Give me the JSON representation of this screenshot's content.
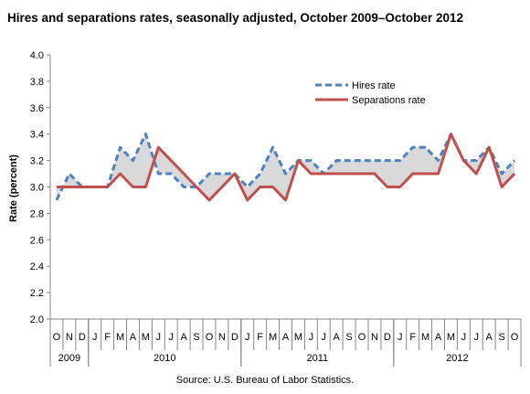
{
  "title": "Hires and separations rates, seasonally adjusted, October 2009–October 2012",
  "source": "Source: U.S. Bureau of Labor Statistics.",
  "chart_data": {
    "type": "line",
    "title": "Hires and separations rates, seasonally adjusted, October 2009–October 2012",
    "ylabel": "Rate (percent)",
    "xlabel": "",
    "ylim": [
      2.0,
      4.0
    ],
    "yticks": [
      "2.0",
      "2.2",
      "2.4",
      "2.6",
      "2.8",
      "3.0",
      "3.2",
      "3.4",
      "3.6",
      "3.8",
      "4.0"
    ],
    "grid": false,
    "legend_position": "top-right",
    "month_labels": [
      "O",
      "N",
      "D",
      "J",
      "F",
      "M",
      "A",
      "M",
      "J",
      "J",
      "A",
      "S",
      "O",
      "N",
      "D",
      "J",
      "F",
      "M",
      "A",
      "M",
      "J",
      "J",
      "A",
      "S",
      "O",
      "N",
      "D",
      "J",
      "F",
      "M",
      "A",
      "M",
      "J",
      "J",
      "A",
      "S",
      "O"
    ],
    "year_groups": [
      {
        "label": "2009",
        "start": 0,
        "end": 2
      },
      {
        "label": "2010",
        "start": 3,
        "end": 14
      },
      {
        "label": "2011",
        "start": 15,
        "end": 26
      },
      {
        "label": "2012",
        "start": 27,
        "end": 36
      }
    ],
    "series": [
      {
        "name": "Hires rate",
        "color": "#4F81BD",
        "style": "dashed",
        "values": [
          2.9,
          3.1,
          3.0,
          3.0,
          3.0,
          3.3,
          3.2,
          3.4,
          3.1,
          3.1,
          3.0,
          3.0,
          3.1,
          3.1,
          3.1,
          3.0,
          3.1,
          3.3,
          3.1,
          3.2,
          3.2,
          3.1,
          3.2,
          3.2,
          3.2,
          3.2,
          3.2,
          3.2,
          3.3,
          3.3,
          3.2,
          3.4,
          3.2,
          3.2,
          3.3,
          3.1,
          3.2
        ]
      },
      {
        "name": "Separations rate",
        "color": "#C0504D",
        "style": "solid",
        "values": [
          3.0,
          3.0,
          3.0,
          3.0,
          3.0,
          3.1,
          3.0,
          3.0,
          3.3,
          3.2,
          3.1,
          3.0,
          2.9,
          3.0,
          3.1,
          2.9,
          3.0,
          3.0,
          2.9,
          3.2,
          3.1,
          3.1,
          3.1,
          3.1,
          3.1,
          3.1,
          3.0,
          3.0,
          3.1,
          3.1,
          3.1,
          3.4,
          3.2,
          3.1,
          3.3,
          3.0,
          3.1
        ]
      }
    ],
    "fill_between_color": "#D9D9D9"
  }
}
